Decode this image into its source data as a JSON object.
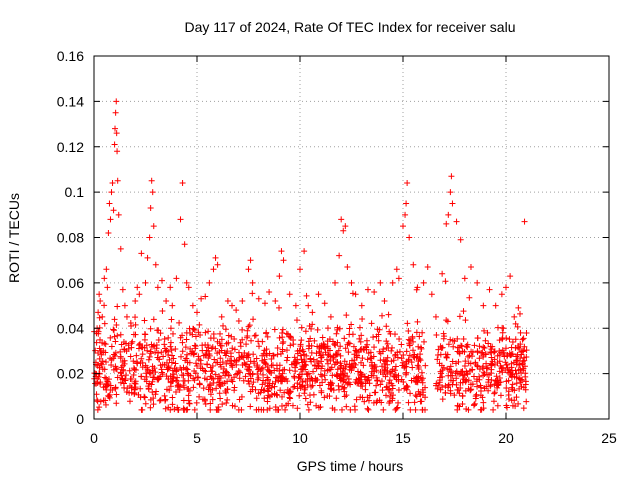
{
  "chart_data": {
    "type": "scatter",
    "title": "Day 117 of 2024, Rate Of TEC Index for receiver salu",
    "xlabel": "GPS time / hours",
    "ylabel": "ROTI / TECUs",
    "xlim": [
      0,
      25
    ],
    "ylim": [
      0,
      0.16
    ],
    "xticks": [
      0,
      5,
      10,
      15,
      20,
      25
    ],
    "xtick_labels": [
      "0",
      "5",
      "10",
      "15",
      "20",
      "25"
    ],
    "yticks": [
      0,
      0.02,
      0.04,
      0.06,
      0.08,
      0.1,
      0.12,
      0.14,
      0.16
    ],
    "ytick_labels": [
      "0",
      "0.02",
      "0.04",
      "0.06",
      "0.08",
      "0.1",
      "0.12",
      "0.14",
      "0.16"
    ],
    "grid": true,
    "marker": "+",
    "marker_color": "#ff0000",
    "series": [
      {
        "name": "ROTI",
        "points": [
          [
            0.1,
            0.024
          ],
          [
            0.15,
            0.04
          ],
          [
            0.2,
            0.047
          ],
          [
            0.25,
            0.055
          ],
          [
            0.3,
            0.052
          ],
          [
            0.35,
            0.03
          ],
          [
            0.4,
            0.045
          ],
          [
            0.5,
            0.062
          ],
          [
            0.6,
            0.066
          ],
          [
            0.65,
            0.058
          ],
          [
            0.7,
            0.082
          ],
          [
            0.75,
            0.095
          ],
          [
            0.8,
            0.088
          ],
          [
            0.85,
            0.1
          ],
          [
            0.9,
            0.104
          ],
          [
            0.95,
            0.092
          ],
          [
            1.0,
            0.121
          ],
          [
            1.02,
            0.128
          ],
          [
            1.05,
            0.135
          ],
          [
            1.08,
            0.14
          ],
          [
            1.1,
            0.126
          ],
          [
            1.12,
            0.118
          ],
          [
            1.15,
            0.105
          ],
          [
            1.2,
            0.09
          ],
          [
            1.3,
            0.075
          ],
          [
            1.4,
            0.057
          ],
          [
            1.5,
            0.05
          ],
          [
            1.6,
            0.045
          ],
          [
            1.8,
            0.041
          ],
          [
            2.0,
            0.052
          ],
          [
            2.1,
            0.058
          ],
          [
            2.2,
            0.055
          ],
          [
            2.3,
            0.073
          ],
          [
            2.5,
            0.06
          ],
          [
            2.6,
            0.071
          ],
          [
            2.7,
            0.08
          ],
          [
            2.75,
            0.093
          ],
          [
            2.8,
            0.105
          ],
          [
            2.85,
            0.1
          ],
          [
            2.9,
            0.085
          ],
          [
            3.0,
            0.068
          ],
          [
            3.1,
            0.058
          ],
          [
            3.3,
            0.061
          ],
          [
            3.5,
            0.052
          ],
          [
            3.7,
            0.058
          ],
          [
            3.8,
            0.05
          ],
          [
            4.0,
            0.062
          ],
          [
            4.2,
            0.088
          ],
          [
            4.3,
            0.104
          ],
          [
            4.4,
            0.077
          ],
          [
            4.5,
            0.06
          ],
          [
            4.6,
            0.058
          ],
          [
            4.8,
            0.05
          ],
          [
            5.0,
            0.047
          ],
          [
            5.2,
            0.053
          ],
          [
            5.4,
            0.054
          ],
          [
            5.6,
            0.06
          ],
          [
            5.8,
            0.066
          ],
          [
            5.9,
            0.071
          ],
          [
            6.0,
            0.068
          ],
          [
            6.2,
            0.045
          ],
          [
            6.5,
            0.052
          ],
          [
            6.7,
            0.05
          ],
          [
            6.9,
            0.048
          ],
          [
            7.2,
            0.052
          ],
          [
            7.5,
            0.066
          ],
          [
            7.6,
            0.07
          ],
          [
            7.7,
            0.06
          ],
          [
            8.0,
            0.053
          ],
          [
            8.3,
            0.051
          ],
          [
            8.5,
            0.056
          ],
          [
            8.8,
            0.052
          ],
          [
            9.0,
            0.063
          ],
          [
            9.1,
            0.074
          ],
          [
            9.2,
            0.07
          ],
          [
            9.5,
            0.055
          ],
          [
            9.8,
            0.05
          ],
          [
            10.0,
            0.066
          ],
          [
            10.2,
            0.074
          ],
          [
            10.4,
            0.05
          ],
          [
            10.6,
            0.047
          ],
          [
            10.9,
            0.055
          ],
          [
            11.2,
            0.051
          ],
          [
            11.5,
            0.045
          ],
          [
            11.7,
            0.06
          ],
          [
            11.9,
            0.072
          ],
          [
            12.0,
            0.088
          ],
          [
            12.1,
            0.083
          ],
          [
            12.2,
            0.085
          ],
          [
            12.3,
            0.067
          ],
          [
            12.5,
            0.06
          ],
          [
            12.7,
            0.055
          ],
          [
            13.0,
            0.05
          ],
          [
            13.3,
            0.057
          ],
          [
            13.6,
            0.056
          ],
          [
            13.9,
            0.06
          ],
          [
            14.1,
            0.052
          ],
          [
            14.3,
            0.046
          ],
          [
            14.5,
            0.06
          ],
          [
            14.7,
            0.066
          ],
          [
            14.8,
            0.062
          ],
          [
            15.0,
            0.085
          ],
          [
            15.1,
            0.09
          ],
          [
            15.15,
            0.095
          ],
          [
            15.2,
            0.104
          ],
          [
            15.3,
            0.08
          ],
          [
            15.5,
            0.068
          ],
          [
            15.7,
            0.058
          ],
          [
            16.0,
            0.06
          ],
          [
            16.2,
            0.067
          ],
          [
            16.4,
            0.055
          ],
          [
            16.6,
            0.045
          ],
          [
            16.9,
            0.064
          ],
          [
            17.1,
            0.086
          ],
          [
            17.2,
            0.09
          ],
          [
            17.3,
            0.1
          ],
          [
            17.35,
            0.107
          ],
          [
            17.4,
            0.095
          ],
          [
            17.6,
            0.087
          ],
          [
            17.8,
            0.079
          ],
          [
            18.0,
            0.062
          ],
          [
            18.3,
            0.067
          ],
          [
            18.6,
            0.06
          ],
          [
            18.9,
            0.05
          ],
          [
            19.2,
            0.057
          ],
          [
            19.5,
            0.05
          ],
          [
            19.8,
            0.055
          ],
          [
            20.0,
            0.058
          ],
          [
            20.2,
            0.063
          ],
          [
            20.4,
            0.045
          ],
          [
            20.6,
            0.049
          ],
          [
            20.8,
            0.035
          ],
          [
            20.9,
            0.087
          ]
        ]
      }
    ],
    "noise_band": {
      "x_range": [
        0,
        21
      ],
      "y_mean": 0.021,
      "y_spread": 0.009,
      "gap": [
        16.1,
        16.6
      ],
      "count": 1700
    }
  }
}
